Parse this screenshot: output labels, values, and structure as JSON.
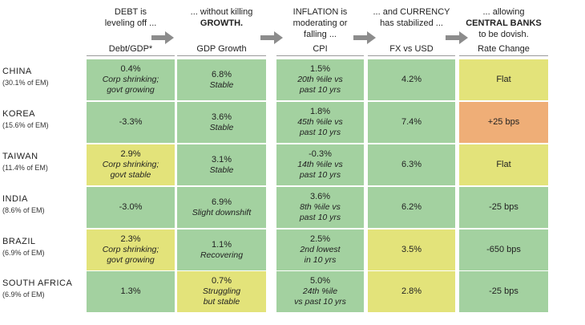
{
  "headers": [
    {
      "line1": "DEBT is",
      "line2": "leveling off ...",
      "bold2": false,
      "line3": ""
    },
    {
      "line1": "... without killing",
      "line2": "GROWTH.",
      "bold2": true,
      "line3": ""
    },
    {
      "line1": "INFLATION is",
      "line2": "moderating or",
      "bold2": false,
      "line3": "falling ..."
    },
    {
      "line1": "... and CURRENCY",
      "line2": "has stabilized ...",
      "bold2": false,
      "line3": ""
    },
    {
      "line1": "... allowing",
      "line2": "CENTRAL BANKS",
      "bold2": true,
      "line3": "to be dovish."
    }
  ],
  "colors": {
    "green": "#a3d1a0",
    "yellow": "#e3e37a",
    "orange": "#efae77",
    "arrow": "#8c8c8c"
  },
  "chart_data": {
    "type": "table",
    "columns": [
      "Debt/GDP*",
      "GDP Growth",
      "CPI",
      "FX vs USD",
      "Rate Change"
    ],
    "rows": [
      {
        "country": "CHINA",
        "weight": "(30.1% of EM)",
        "cells": [
          {
            "value": "0.4%",
            "note": [
              "Corp shrinking;",
              "govt growing"
            ],
            "color": "green"
          },
          {
            "value": "6.8%",
            "note": [
              "Stable"
            ],
            "color": "green"
          },
          {
            "value": "1.5%",
            "note": [
              "20th %ile vs",
              "past 10 yrs"
            ],
            "color": "green"
          },
          {
            "value": "4.2%",
            "note": [],
            "color": "green"
          },
          {
            "value": "Flat",
            "note": [],
            "color": "yellow"
          }
        ]
      },
      {
        "country": "KOREA",
        "weight": "(15.6% of EM)",
        "cells": [
          {
            "value": "-3.3%",
            "note": [],
            "color": "green"
          },
          {
            "value": "3.6%",
            "note": [
              "Stable"
            ],
            "color": "green"
          },
          {
            "value": "1.8%",
            "note": [
              "45th %ile vs",
              "past 10 yrs"
            ],
            "color": "green"
          },
          {
            "value": "7.4%",
            "note": [],
            "color": "green"
          },
          {
            "value": "+25 bps",
            "note": [],
            "color": "orange"
          }
        ]
      },
      {
        "country": "TAIWAN",
        "weight": "(11.4% of EM)",
        "cells": [
          {
            "value": "2.9%",
            "note": [
              "Corp shrinking;",
              "govt stable"
            ],
            "color": "yellow"
          },
          {
            "value": "3.1%",
            "note": [
              "Stable"
            ],
            "color": "green"
          },
          {
            "value": "-0.3%",
            "note": [
              "14th %ile vs",
              "past 10 yrs"
            ],
            "color": "green"
          },
          {
            "value": "6.3%",
            "note": [],
            "color": "green"
          },
          {
            "value": "Flat",
            "note": [],
            "color": "yellow"
          }
        ]
      },
      {
        "country": "INDIA",
        "weight": "(8.6% of EM)",
        "cells": [
          {
            "value": "-3.0%",
            "note": [],
            "color": "green"
          },
          {
            "value": "6.9%",
            "note": [
              "Slight downshift"
            ],
            "color": "green"
          },
          {
            "value": "3.6%",
            "note": [
              "8th %ile vs",
              "past 10 yrs"
            ],
            "color": "green"
          },
          {
            "value": "6.2%",
            "note": [],
            "color": "green"
          },
          {
            "value": "-25 bps",
            "note": [],
            "color": "green"
          }
        ]
      },
      {
        "country": "BRAZIL",
        "weight": "(6.9% of EM)",
        "cells": [
          {
            "value": "2.3%",
            "note": [
              "Corp shrinking;",
              "govt growing"
            ],
            "color": "yellow"
          },
          {
            "value": "1.1%",
            "note": [
              "Recovering"
            ],
            "color": "green"
          },
          {
            "value": "2.5%",
            "note": [
              "2nd lowest",
              "in 10 yrs"
            ],
            "color": "green"
          },
          {
            "value": "3.5%",
            "note": [],
            "color": "yellow"
          },
          {
            "value": "-650 bps",
            "note": [],
            "color": "green"
          }
        ]
      },
      {
        "country": "SOUTH AFRICA",
        "weight": "(6.9% of EM)",
        "cells": [
          {
            "value": "1.3%",
            "note": [],
            "color": "green"
          },
          {
            "value": "0.7%",
            "note": [
              "Struggling",
              "but stable"
            ],
            "color": "yellow"
          },
          {
            "value": "5.0%",
            "note": [
              "24th %ile",
              "vs past 10 yrs"
            ],
            "color": "green"
          },
          {
            "value": "2.8%",
            "note": [],
            "color": "yellow"
          },
          {
            "value": "-25 bps",
            "note": [],
            "color": "green"
          }
        ]
      }
    ]
  }
}
